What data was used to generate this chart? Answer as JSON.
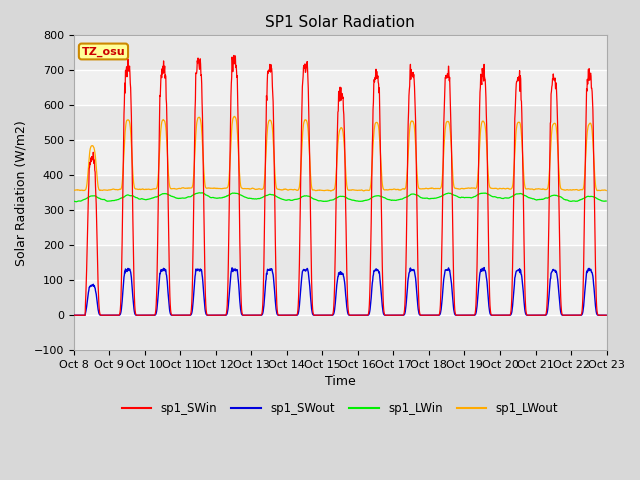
{
  "title": "SP1 Solar Radiation",
  "xlabel": "Time",
  "ylabel": "Solar Radiation (W/m2)",
  "ylim": [
    -100,
    800
  ],
  "fig_bg": "#d8d8d8",
  "plot_bg": "#f0f0f0",
  "colors": {
    "SWin": "#ff0000",
    "SWout": "#0000dd",
    "LWin": "#00ee00",
    "LWout": "#ffaa00"
  },
  "legend_labels": [
    "sp1_SWin",
    "sp1_SWout",
    "sp1_LWin",
    "sp1_LWout"
  ],
  "tz_label": "TZ_osu",
  "num_days": 15,
  "dt_hours": 0.25
}
